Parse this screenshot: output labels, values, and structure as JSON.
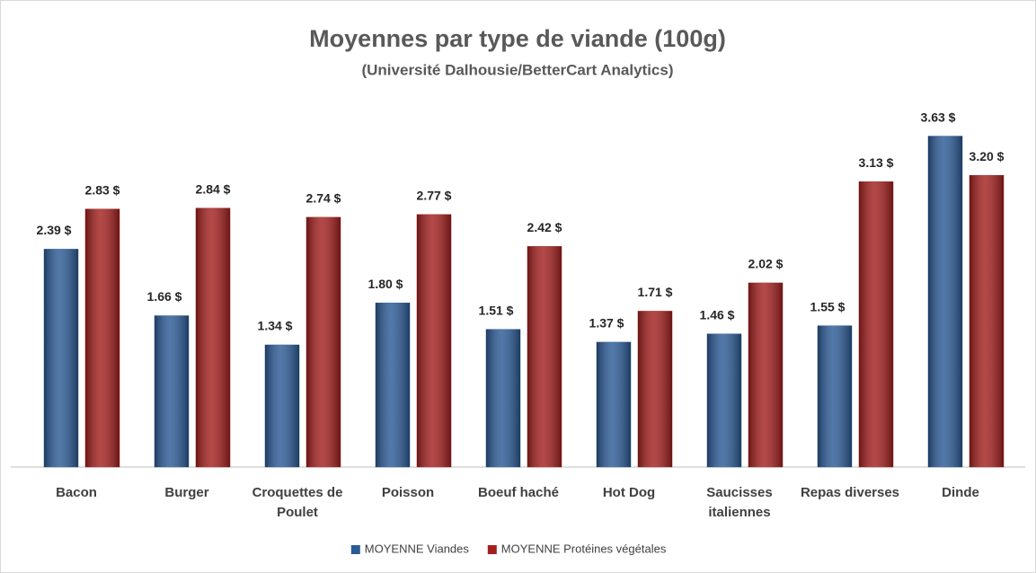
{
  "chart_data": {
    "type": "bar",
    "title": "Moyennes par type de viande (100g)",
    "subtitle": "(Université Dalhousie/BetterCart Analytics)",
    "categories": [
      "Bacon",
      "Burger",
      "Croquettes de Poulet",
      "Poisson",
      "Boeuf haché",
      "Hot Dog",
      "Saucisses italiennes",
      "Repas diverses",
      "Dinde"
    ],
    "series": [
      {
        "name": "MOYENNE Viandes",
        "color": "#2c5b96",
        "values": [
          2.39,
          1.66,
          1.34,
          1.8,
          1.51,
          1.37,
          1.46,
          1.55,
          3.63
        ],
        "value_labels": [
          "2.39 $",
          "1.66 $",
          "1.34 $",
          "1.80 $",
          "1.51 $",
          "1.37 $",
          "1.46 $",
          "1.55 $",
          "3.63 $"
        ]
      },
      {
        "name": "MOYENNE Protéines végétales",
        "color": "#a3201f",
        "values": [
          2.83,
          2.84,
          2.74,
          2.77,
          2.42,
          1.71,
          2.02,
          3.13,
          3.2
        ],
        "value_labels": [
          "2.83 $",
          "2.84 $",
          "2.74 $",
          "2.77 $",
          "2.42 $",
          "1.71 $",
          "2.02 $",
          "3.13 $",
          "3.20 $"
        ]
      }
    ],
    "ylim": [
      0,
      4
    ],
    "legend": "bottom"
  }
}
